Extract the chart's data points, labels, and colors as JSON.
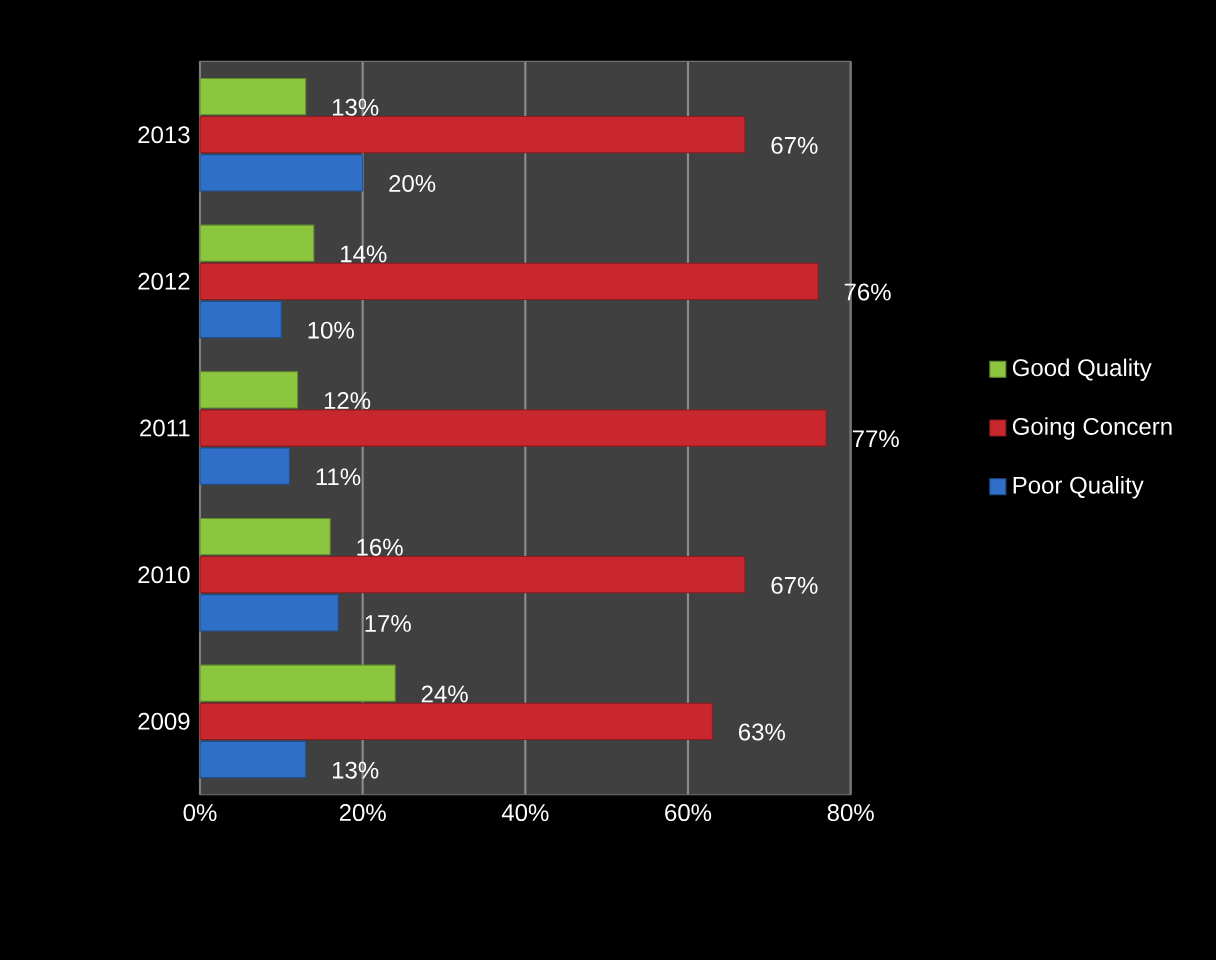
{
  "chart_data": {
    "type": "bar",
    "orientation": "horizontal",
    "categories": [
      "2013",
      "2012",
      "2011",
      "2010",
      "2009"
    ],
    "series": [
      {
        "name": "Good Quality",
        "color": "#8cc63f",
        "values": [
          13,
          14,
          12,
          16,
          24
        ],
        "value_labels": [
          "13%",
          "14%",
          "12%",
          "16%",
          "24%"
        ]
      },
      {
        "name": "Going Concern",
        "color": "#c8282d",
        "values": [
          67,
          76,
          77,
          67,
          63
        ],
        "value_labels": [
          "67%",
          "76%",
          "77%",
          "67%",
          "63%"
        ]
      },
      {
        "name": "Poor Quality",
        "color": "#2f6fc8",
        "values": [
          20,
          10,
          11,
          17,
          13
        ],
        "value_labels": [
          "20%",
          "10%",
          "11%",
          "17%",
          "13%"
        ]
      }
    ],
    "xlim": [
      0,
      80
    ],
    "xticks": [
      {
        "value": 0,
        "label": "0%"
      },
      {
        "value": 20,
        "label": "20%"
      },
      {
        "value": 40,
        "label": "40%"
      },
      {
        "value": 60,
        "label": "60%"
      },
      {
        "value": 80,
        "label": "80%"
      }
    ],
    "grid": "x",
    "legend": "right"
  }
}
